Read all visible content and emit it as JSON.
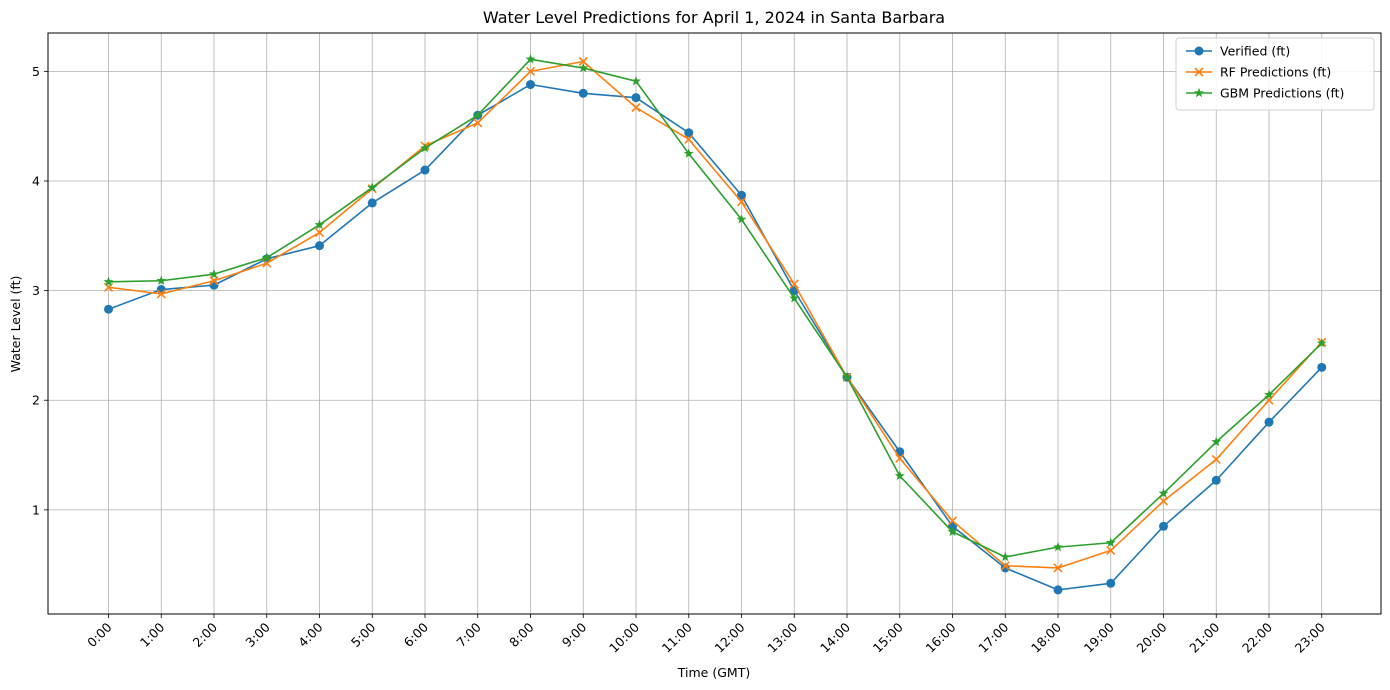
{
  "chart_data": {
    "type": "line",
    "title": "Water Level Predictions for April 1, 2024 in Santa Barbara",
    "xlabel": "Time (GMT)",
    "ylabel": "Water Level (ft)",
    "categories": [
      "0:00",
      "1:00",
      "2:00",
      "3:00",
      "4:00",
      "5:00",
      "6:00",
      "7:00",
      "8:00",
      "9:00",
      "10:00",
      "11:00",
      "12:00",
      "13:00",
      "14:00",
      "15:00",
      "16:00",
      "17:00",
      "18:00",
      "19:00",
      "20:00",
      "21:00",
      "22:00",
      "23:00"
    ],
    "yticks": [
      1,
      2,
      3,
      4,
      5
    ],
    "ylim": [
      0.05,
      5.35
    ],
    "grid": true,
    "legend_position": "top-right",
    "series": [
      {
        "name": "Verified (ft)",
        "color": "#1f77b4",
        "marker": "circle",
        "values": [
          2.83,
          3.01,
          3.05,
          3.29,
          3.41,
          3.8,
          4.1,
          4.6,
          4.88,
          4.8,
          4.76,
          4.44,
          3.87,
          3.0,
          2.21,
          1.53,
          0.85,
          0.47,
          0.27,
          0.33,
          0.85,
          1.27,
          1.8,
          2.3
        ]
      },
      {
        "name": "RF Predictions (ft)",
        "color": "#ff7f0e",
        "marker": "x",
        "values": [
          3.03,
          2.97,
          3.09,
          3.25,
          3.53,
          3.93,
          4.32,
          4.53,
          5.0,
          5.09,
          4.67,
          4.38,
          3.81,
          3.06,
          2.21,
          1.47,
          0.9,
          0.49,
          0.47,
          0.63,
          1.08,
          1.46,
          2.0,
          2.53
        ]
      },
      {
        "name": "GBM Predictions (ft)",
        "color": "#2ca02c",
        "marker": "star",
        "values": [
          3.08,
          3.09,
          3.15,
          3.3,
          3.6,
          3.94,
          4.3,
          4.6,
          5.11,
          5.03,
          4.91,
          4.25,
          3.65,
          2.93,
          2.21,
          1.31,
          0.8,
          0.57,
          0.66,
          0.7,
          1.15,
          1.62,
          2.05,
          2.52
        ]
      }
    ]
  }
}
